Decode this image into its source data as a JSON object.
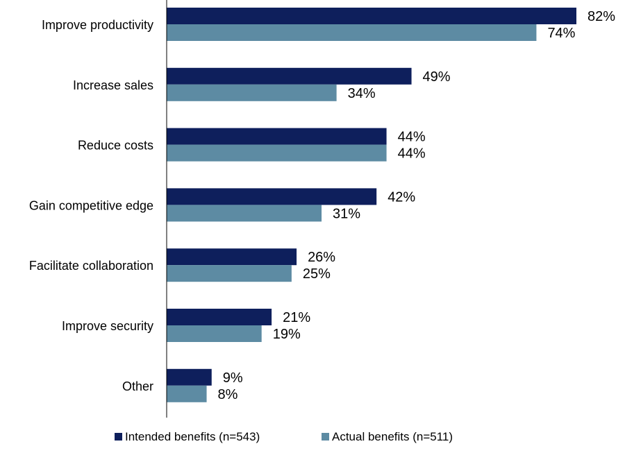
{
  "chart_data": {
    "type": "bar",
    "orientation": "horizontal",
    "categories": [
      "Improve productivity",
      "Increase sales",
      "Reduce costs",
      "Gain competitive edge",
      "Facilitate collaboration",
      "Improve security",
      "Other"
    ],
    "series": [
      {
        "name": "Intended benefits (n=543)",
        "color": "#0e1f5c",
        "values": [
          82,
          49,
          44,
          42,
          26,
          21,
          9
        ],
        "labels": [
          "82%",
          "49%",
          "44%",
          "42%",
          "26%",
          "21%",
          "9%"
        ]
      },
      {
        "name": "Actual benefits (n=511)",
        "color": "#5d8ba3",
        "values": [
          74,
          34,
          44,
          31,
          25,
          19,
          8
        ],
        "labels": [
          "74%",
          "34%",
          "44%",
          "31%",
          "25%",
          "19%",
          "8%"
        ]
      }
    ],
    "value_unit": "%",
    "xlim": [
      0,
      82
    ],
    "grid": false,
    "axis_line": "left",
    "legend_position": "bottom"
  }
}
